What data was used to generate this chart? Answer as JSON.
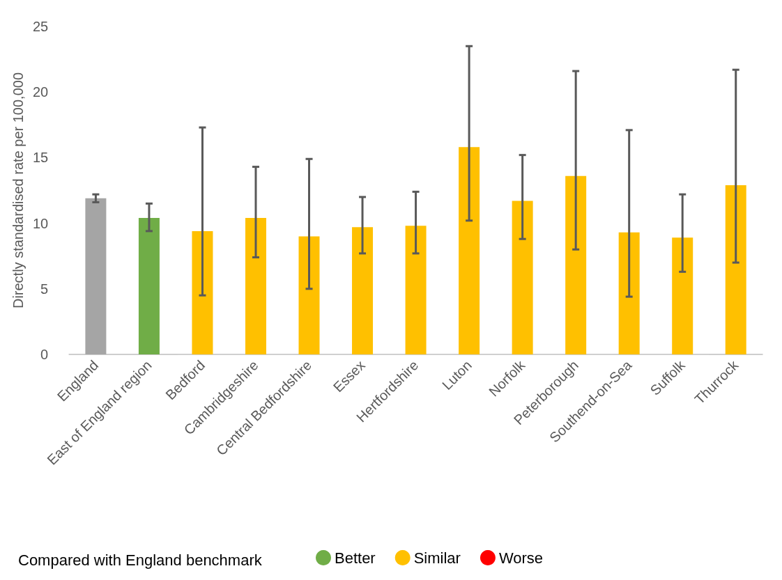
{
  "chart_data": {
    "type": "bar",
    "ylabel": "Directly standardised rate per 100,000",
    "legend_title": "Compared with England benchmark",
    "legend": "bottom",
    "ylim": [
      0,
      25
    ],
    "yticks": [
      0,
      5,
      10,
      15,
      20,
      25
    ],
    "categories": [
      "England",
      "East of England region",
      "Bedford",
      "Cambridgeshire",
      "Central Bedfordshire",
      "Essex",
      "Hertfordshire",
      "Luton",
      "Norfolk",
      "Peterborough",
      "Southend-on-Sea",
      "Suffolk",
      "Thurrock"
    ],
    "series": [
      {
        "color": "#a5a5a5",
        "values": [
          11.9,
          null,
          null,
          null,
          null,
          null,
          null,
          null,
          null,
          null,
          null,
          null,
          null
        ],
        "errors": [
          [
            11.6,
            12.2
          ],
          null,
          null,
          null,
          null,
          null,
          null,
          null,
          null,
          null,
          null,
          null,
          null
        ]
      },
      {
        "name": "Better",
        "color": "#70ad47",
        "values": [
          null,
          10.4,
          null,
          null,
          null,
          null,
          null,
          null,
          null,
          null,
          null,
          null,
          null
        ],
        "errors": [
          null,
          [
            9.4,
            11.5
          ],
          null,
          null,
          null,
          null,
          null,
          null,
          null,
          null,
          null,
          null,
          null
        ]
      },
      {
        "name": "Similar",
        "color": "#ffc000",
        "values": [
          null,
          null,
          9.4,
          10.4,
          9.0,
          9.7,
          9.8,
          15.8,
          11.7,
          13.6,
          9.3,
          8.9,
          12.9
        ],
        "errors": [
          null,
          null,
          [
            4.5,
            17.3
          ],
          [
            7.4,
            14.3
          ],
          [
            5.0,
            14.9
          ],
          [
            7.7,
            12.0
          ],
          [
            7.7,
            12.4
          ],
          [
            10.2,
            23.5
          ],
          [
            8.8,
            15.2
          ],
          [
            8.0,
            21.6
          ],
          [
            4.4,
            17.1
          ],
          [
            6.3,
            12.2
          ],
          [
            7.0,
            21.7
          ]
        ]
      },
      {
        "name": "Worse",
        "color": "#ff0000",
        "values": [
          null,
          null,
          null,
          null,
          null,
          null,
          null,
          null,
          null,
          null,
          null,
          null,
          null
        ]
      }
    ]
  }
}
